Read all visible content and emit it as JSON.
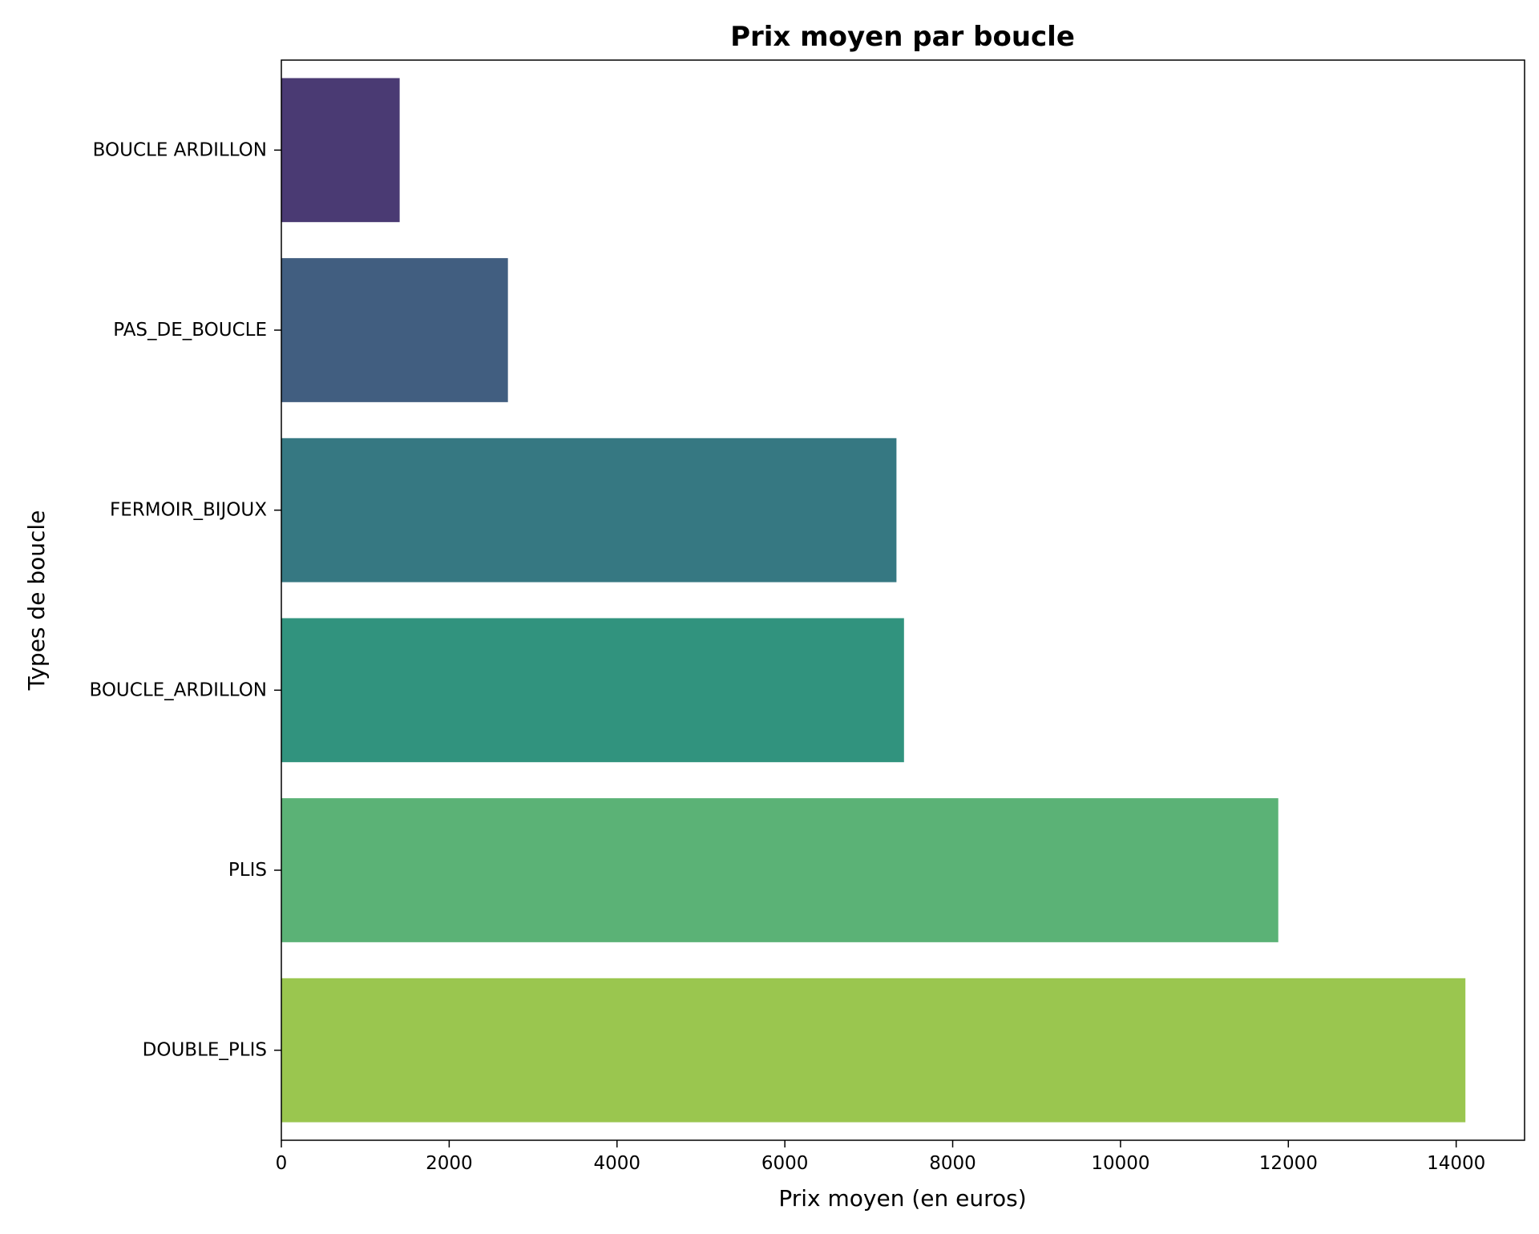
{
  "chart_data": {
    "type": "bar",
    "orientation": "horizontal",
    "title": "Prix moyen par boucle",
    "xlabel": "Prix moyen (en euros)",
    "ylabel": "Types de boucle",
    "categories": [
      "BOUCLE ARDILLON",
      "PAS_DE_BOUCLE",
      "FERMOIR_BIJOUX",
      "BOUCLE_ARDILLON",
      "PLIS",
      "DOUBLE_PLIS"
    ],
    "values": [
      1410,
      2700,
      7330,
      7420,
      11880,
      14110
    ],
    "colors": [
      "#4a3a73",
      "#415e80",
      "#367882",
      "#31937e",
      "#5bb276",
      "#9ac64f"
    ],
    "xlim": [
      0,
      14815
    ],
    "xticks": [
      0,
      2000,
      4000,
      6000,
      8000,
      10000,
      12000,
      14000
    ],
    "grid": false,
    "legend": "none"
  }
}
